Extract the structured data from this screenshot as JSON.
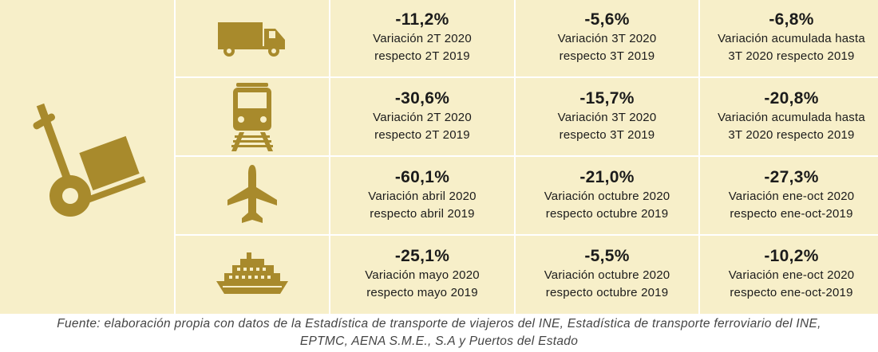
{
  "rows": [
    {
      "mode_icon": "truck-icon",
      "cells": [
        {
          "value": "-11,2%",
          "line1": "Variación 2T 2020",
          "line2": "respecto 2T 2019"
        },
        {
          "value": "-5,6%",
          "line1": "Variación 3T 2020",
          "line2": "respecto 3T 2019"
        },
        {
          "value": "-6,8%",
          "line1": "Variación acumulada hasta",
          "line2": "3T 2020 respecto 2019"
        }
      ]
    },
    {
      "mode_icon": "train-icon",
      "cells": [
        {
          "value": "-30,6%",
          "line1": "Variación 2T 2020",
          "line2": "respecto 2T 2019"
        },
        {
          "value": "-15,7%",
          "line1": "Variación 3T 2020",
          "line2": "respecto 3T 2019"
        },
        {
          "value": "-20,8%",
          "line1": "Variación acumulada hasta",
          "line2": "3T 2020 respecto 2019"
        }
      ]
    },
    {
      "mode_icon": "airplane-icon",
      "cells": [
        {
          "value": "-60,1%",
          "line1": "Variación abril 2020",
          "line2": "respecto abril 2019"
        },
        {
          "value": "-21,0%",
          "line1": "Variación octubre 2020",
          "line2": "respecto octubre 2019"
        },
        {
          "value": "-27,3%",
          "line1": "Variación ene-oct 2020",
          "line2": "respecto ene-oct-2019"
        }
      ]
    },
    {
      "mode_icon": "ship-icon",
      "cells": [
        {
          "value": "-25,1%",
          "line1": "Variación mayo 2020",
          "line2": "respecto mayo 2019"
        },
        {
          "value": "-5,5%",
          "line1": "Variación octubre 2020",
          "line2": "respecto octubre 2019"
        },
        {
          "value": "-10,2%",
          "line1": "Variación ene-oct 2020",
          "line2": "respecto ene-oct-2019"
        }
      ]
    }
  ],
  "caption": {
    "line1": "Fuente: elaboración propia con datos de la Estadística de transporte de viajeros del INE, Estadística de transporte ferroviario del INE,",
    "line2": "EPTMC, AENA S.M.E., S.A y Puertos del Estado"
  },
  "colors": {
    "panel": "#f7efc9",
    "icon": "#a88a2c",
    "text": "#1b1b1b"
  }
}
